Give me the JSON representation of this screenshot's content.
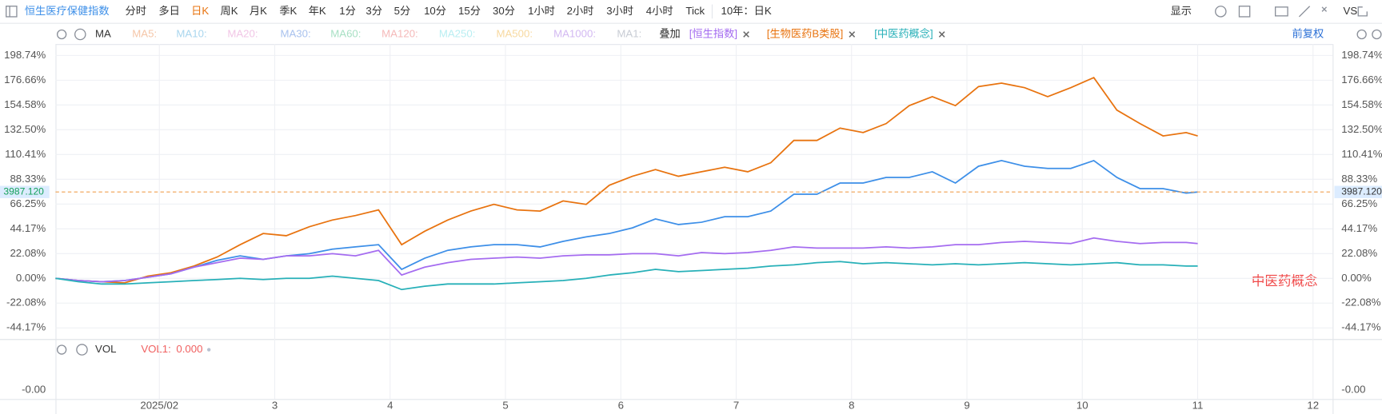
{
  "toolbar": {
    "periods": [
      "分时",
      "多日",
      "日K",
      "周K",
      "月K",
      "季K",
      "年K",
      "1分",
      "3分",
      "5分",
      "10分",
      "15分",
      "30分",
      "1小时",
      "2小时",
      "3小时",
      "4小时",
      "Tick"
    ],
    "active_period": "日K",
    "range": "10年：日K",
    "display": "显示",
    "vs": "VS"
  },
  "indicator_bar": {
    "ma": "MA",
    "ma_items": [
      {
        "label": "MA5:",
        "color": "#f5c6a8"
      },
      {
        "label": "MA10:",
        "color": "#a9d6ee"
      },
      {
        "label": "MA20:",
        "color": "#f1c6e6"
      },
      {
        "label": "MA30:",
        "color": "#a9c2ee"
      },
      {
        "label": "MA60:",
        "color": "#a8e0c4"
      },
      {
        "label": "MA120:",
        "color": "#f5b9b9"
      },
      {
        "label": "MA250:",
        "color": "#b9eef2"
      },
      {
        "label": "MA500:",
        "color": "#f7d9a0"
      },
      {
        "label": "MA1000:",
        "color": "#d3b9f2"
      },
      {
        "label": "MA1:",
        "color": "#c8ccd4"
      }
    ],
    "overlay": "叠加",
    "adjust": "前复权"
  },
  "chart_data": {
    "type": "line",
    "x": [
      1.1,
      1.3,
      1.5,
      1.7,
      1.9,
      2.1,
      2.3,
      2.5,
      2.7,
      2.9,
      3.1,
      3.3,
      3.5,
      3.7,
      3.9,
      4.1,
      4.3,
      4.5,
      4.7,
      4.9,
      5.1,
      5.3,
      5.5,
      5.7,
      5.9,
      6.1,
      6.3,
      6.5,
      6.7,
      6.9,
      7.1,
      7.3,
      7.5,
      7.7,
      7.9,
      8.1,
      8.3,
      8.5,
      8.7,
      8.9,
      9.1,
      9.3,
      9.5,
      9.7,
      9.9,
      10.1,
      10.3,
      10.5,
      10.7,
      10.9,
      11.0
    ],
    "series": [
      {
        "name": "恒生医疗保健指数",
        "color": "#3d8fe8",
        "values": [
          0,
          -2,
          -3,
          -2,
          1,
          4,
          10,
          16,
          20,
          17,
          20,
          22,
          26,
          28,
          30,
          8,
          18,
          25,
          28,
          30,
          30,
          28,
          33,
          37,
          40,
          45,
          53,
          48,
          50,
          55,
          55,
          60,
          75,
          75,
          85,
          85,
          90,
          90,
          95,
          85,
          100,
          105,
          100,
          98,
          98,
          105,
          90,
          80,
          80,
          76,
          77
        ]
      },
      {
        "name": "[恒生指数]",
        "color": "#a56cf0",
        "values": [
          0,
          -2,
          -3,
          -2,
          1,
          4,
          10,
          14,
          18,
          17,
          20,
          20,
          22,
          20,
          25,
          3,
          10,
          14,
          17,
          18,
          19,
          18,
          20,
          21,
          21,
          22,
          22,
          20,
          23,
          22,
          23,
          25,
          28,
          27,
          27,
          27,
          28,
          27,
          28,
          30,
          30,
          32,
          33,
          32,
          31,
          36,
          33,
          31,
          32,
          32,
          31
        ]
      },
      {
        "name": "[生物医药B类股]",
        "color": "#e8730f",
        "values": [
          0,
          -2,
          -3,
          -4,
          2,
          5,
          11,
          19,
          30,
          40,
          38,
          46,
          52,
          56,
          61,
          30,
          42,
          52,
          60,
          66,
          61,
          60,
          69,
          66,
          83,
          91,
          97,
          91,
          95,
          99,
          95,
          103,
          123,
          123,
          134,
          130,
          138,
          154,
          162,
          154,
          171,
          174,
          170,
          162,
          170,
          179,
          150,
          138,
          127,
          130,
          127
        ]
      },
      {
        "name": "[中医药概念]",
        "color": "#27b0b8",
        "values": [
          0,
          -3,
          -5,
          -5,
          -4,
          -3,
          -2,
          -1,
          0,
          -1,
          0,
          0,
          2,
          0,
          -2,
          -10,
          -7,
          -5,
          -5,
          -5,
          -4,
          -3,
          -2,
          0,
          3,
          5,
          8,
          6,
          7,
          8,
          9,
          11,
          12,
          14,
          15,
          13,
          14,
          13,
          12,
          13,
          12,
          13,
          14,
          13,
          12,
          13,
          14,
          12,
          12,
          11,
          11
        ]
      }
    ],
    "xlim": [
      1.1,
      12.17
    ],
    "xticks": [
      {
        "value": 2,
        "label": "2025/02"
      },
      3,
      4,
      5,
      6,
      7,
      8,
      9,
      10,
      11,
      12
    ],
    "ylim": [
      -53.4,
      208.9
    ],
    "yticks": [
      {
        "value": 198.74,
        "label": "198.74%"
      },
      {
        "value": 176.66,
        "label": "176.66%"
      },
      {
        "value": 154.58,
        "label": "154.58%"
      },
      {
        "value": 132.5,
        "label": "132.50%"
      },
      {
        "value": 110.41,
        "label": "110.41%"
      },
      {
        "value": 88.33,
        "label": "88.33%"
      },
      {
        "value": 66.25,
        "label": "66.25%"
      },
      {
        "value": 44.17,
        "label": "44.17%"
      },
      {
        "value": 22.08,
        "label": "22.08%"
      },
      {
        "value": 0,
        "label": "0.00%"
      },
      {
        "value": -22.08,
        "label": "-22.08%"
      },
      {
        "value": -44.17,
        "label": "-44.17%"
      }
    ],
    "grid": true,
    "last_price": "3987.120",
    "annotation": "中医药概念",
    "volume": {
      "title": "VOL",
      "indicator": "VOL1:",
      "value": "0.000",
      "tick": "-0.00"
    }
  }
}
